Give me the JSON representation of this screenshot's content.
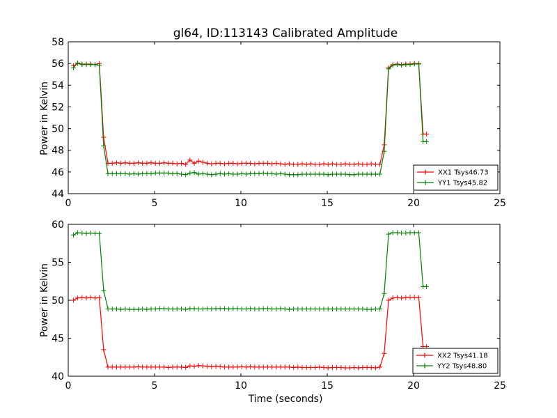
{
  "figure_title": "gl64, ID:113143 Calibrated Amplitude",
  "chart_data": [
    {
      "type": "line",
      "title": "gl64, ID:113143 Calibrated Amplitude",
      "xlabel": "",
      "ylabel": "Power in Kelvin",
      "xlim": [
        0,
        25
      ],
      "ylim": [
        44,
        58
      ],
      "xticks": [
        "0",
        "5",
        "10",
        "15",
        "20",
        "25"
      ],
      "yticks": [
        "44",
        "46",
        "48",
        "50",
        "52",
        "54",
        "56",
        "58"
      ],
      "grid": false,
      "legend_position": "lower-right",
      "series": [
        {
          "name": "XX1 Tsys46.73",
          "color": "#ff0000",
          "x": [
            0.3,
            0.55,
            0.8,
            1.05,
            1.3,
            1.55,
            1.8,
            2.05,
            2.3,
            2.55,
            2.8,
            3.05,
            3.3,
            3.55,
            3.8,
            4.05,
            4.3,
            4.55,
            4.8,
            5.05,
            5.3,
            5.55,
            5.8,
            6.05,
            6.3,
            6.55,
            6.8,
            7.05,
            7.3,
            7.55,
            7.8,
            8.05,
            8.3,
            8.55,
            8.8,
            9.05,
            9.3,
            9.55,
            9.8,
            10.05,
            10.3,
            10.55,
            10.8,
            11.05,
            11.3,
            11.55,
            11.8,
            12.05,
            12.3,
            12.55,
            12.8,
            13.05,
            13.3,
            13.55,
            13.8,
            14.05,
            14.3,
            14.55,
            14.8,
            15.05,
            15.3,
            15.55,
            15.8,
            16.05,
            16.3,
            16.55,
            16.8,
            17.05,
            17.3,
            17.55,
            17.8,
            18.05,
            18.3,
            18.55,
            18.8,
            19.05,
            19.3,
            19.55,
            19.8,
            20.05,
            20.3,
            20.55,
            20.75
          ],
          "values": [
            55.8,
            56.0,
            55.95,
            55.9,
            55.95,
            55.9,
            56.0,
            49.2,
            46.8,
            46.8,
            46.85,
            46.8,
            46.85,
            46.8,
            46.8,
            46.85,
            46.8,
            46.8,
            46.85,
            46.8,
            46.8,
            46.85,
            46.8,
            46.8,
            46.75,
            46.8,
            46.7,
            47.1,
            46.8,
            47.0,
            46.9,
            46.8,
            46.75,
            46.8,
            46.8,
            46.75,
            46.8,
            46.8,
            46.75,
            46.8,
            46.8,
            46.8,
            46.75,
            46.8,
            46.8,
            46.8,
            46.75,
            46.8,
            46.75,
            46.7,
            46.75,
            46.7,
            46.7,
            46.75,
            46.7,
            46.75,
            46.7,
            46.7,
            46.75,
            46.7,
            46.75,
            46.7,
            46.7,
            46.75,
            46.7,
            46.7,
            46.75,
            46.7,
            46.7,
            46.75,
            46.7,
            46.7,
            48.5,
            55.6,
            55.9,
            55.95,
            55.9,
            55.95,
            55.95,
            56.0,
            56.0,
            49.5,
            49.5
          ]
        },
        {
          "name": "YY1 Tsys45.82",
          "color": "#008000",
          "x": [
            0.3,
            0.55,
            0.8,
            1.05,
            1.3,
            1.55,
            1.8,
            2.05,
            2.3,
            2.55,
            2.8,
            3.05,
            3.3,
            3.55,
            3.8,
            4.05,
            4.3,
            4.55,
            4.8,
            5.05,
            5.3,
            5.55,
            5.8,
            6.05,
            6.3,
            6.55,
            6.8,
            7.05,
            7.3,
            7.55,
            7.8,
            8.05,
            8.3,
            8.55,
            8.8,
            9.05,
            9.3,
            9.55,
            9.8,
            10.05,
            10.3,
            10.55,
            10.8,
            11.05,
            11.3,
            11.55,
            11.8,
            12.05,
            12.3,
            12.55,
            12.8,
            13.05,
            13.3,
            13.55,
            13.8,
            14.05,
            14.3,
            14.55,
            14.8,
            15.05,
            15.3,
            15.55,
            15.8,
            16.05,
            16.3,
            16.55,
            16.8,
            17.05,
            17.3,
            17.55,
            17.8,
            18.05,
            18.3,
            18.55,
            18.8,
            19.05,
            19.3,
            19.55,
            19.8,
            20.05,
            20.3,
            20.55,
            20.75
          ],
          "values": [
            55.6,
            56.05,
            55.9,
            55.95,
            55.9,
            55.9,
            55.85,
            48.4,
            45.85,
            45.85,
            45.85,
            45.85,
            45.85,
            45.8,
            45.85,
            45.8,
            45.85,
            45.85,
            45.85,
            45.9,
            45.9,
            45.9,
            45.9,
            45.85,
            45.85,
            45.8,
            45.75,
            45.9,
            45.95,
            45.8,
            45.85,
            45.8,
            45.75,
            45.8,
            45.85,
            45.8,
            45.85,
            45.8,
            45.8,
            45.85,
            45.8,
            45.85,
            45.85,
            45.85,
            45.9,
            45.85,
            45.85,
            45.8,
            45.85,
            45.8,
            45.75,
            45.75,
            45.75,
            45.8,
            45.8,
            45.8,
            45.8,
            45.8,
            45.8,
            45.75,
            45.8,
            45.8,
            45.8,
            45.8,
            45.75,
            45.75,
            45.8,
            45.8,
            45.8,
            45.8,
            45.8,
            45.8,
            47.9,
            55.5,
            55.85,
            55.9,
            55.85,
            55.9,
            55.9,
            55.95,
            55.95,
            48.8,
            48.8
          ]
        }
      ]
    },
    {
      "type": "line",
      "title": "",
      "xlabel": "Time (seconds)",
      "ylabel": "Power in Kelvin",
      "xlim": [
        0,
        25
      ],
      "ylim": [
        40,
        60
      ],
      "xticks": [
        "0",
        "5",
        "10",
        "15",
        "20",
        "25"
      ],
      "yticks": [
        "40",
        "45",
        "50",
        "55",
        "60"
      ],
      "grid": false,
      "legend_position": "lower-right",
      "series": [
        {
          "name": "XX2 Tsys41.18",
          "color": "#ff0000",
          "x": [
            0.3,
            0.55,
            0.8,
            1.05,
            1.3,
            1.55,
            1.8,
            2.05,
            2.3,
            2.55,
            2.8,
            3.05,
            3.3,
            3.55,
            3.8,
            4.05,
            4.3,
            4.55,
            4.8,
            5.05,
            5.3,
            5.55,
            5.8,
            6.05,
            6.3,
            6.55,
            6.8,
            7.05,
            7.3,
            7.55,
            7.8,
            8.05,
            8.3,
            8.55,
            8.8,
            9.05,
            9.3,
            9.55,
            9.8,
            10.05,
            10.3,
            10.55,
            10.8,
            11.05,
            11.3,
            11.55,
            11.8,
            12.05,
            12.3,
            12.55,
            12.8,
            13.05,
            13.3,
            13.55,
            13.8,
            14.05,
            14.3,
            14.55,
            14.8,
            15.05,
            15.3,
            15.55,
            15.8,
            16.05,
            16.3,
            16.55,
            16.8,
            17.05,
            17.3,
            17.55,
            17.8,
            18.05,
            18.3,
            18.55,
            18.8,
            19.05,
            19.3,
            19.55,
            19.8,
            20.05,
            20.3,
            20.55,
            20.75
          ],
          "values": [
            50.0,
            50.3,
            50.35,
            50.3,
            50.35,
            50.3,
            50.35,
            43.5,
            41.2,
            41.2,
            41.2,
            41.2,
            41.2,
            41.2,
            41.2,
            41.25,
            41.2,
            41.2,
            41.2,
            41.2,
            41.2,
            41.2,
            41.15,
            41.2,
            41.2,
            41.2,
            41.15,
            41.35,
            41.3,
            41.4,
            41.35,
            41.3,
            41.25,
            41.3,
            41.25,
            41.2,
            41.2,
            41.2,
            41.2,
            41.25,
            41.2,
            41.25,
            41.2,
            41.2,
            41.2,
            41.2,
            41.2,
            41.2,
            41.2,
            41.2,
            41.2,
            41.15,
            41.2,
            41.15,
            41.15,
            41.15,
            41.15,
            41.2,
            41.15,
            41.1,
            41.15,
            41.15,
            41.15,
            41.1,
            41.1,
            41.15,
            41.1,
            41.15,
            41.15,
            41.15,
            41.1,
            41.2,
            43.0,
            50.0,
            50.3,
            50.35,
            50.3,
            50.35,
            50.4,
            50.4,
            50.35,
            43.9,
            43.9
          ]
        },
        {
          "name": "YY2 Tsys48.80",
          "color": "#008000",
          "x": [
            0.3,
            0.55,
            0.8,
            1.05,
            1.3,
            1.55,
            1.8,
            2.05,
            2.3,
            2.55,
            2.8,
            3.05,
            3.3,
            3.55,
            3.8,
            4.05,
            4.3,
            4.55,
            4.8,
            5.05,
            5.3,
            5.55,
            5.8,
            6.05,
            6.3,
            6.55,
            6.8,
            7.05,
            7.3,
            7.55,
            7.8,
            8.05,
            8.3,
            8.55,
            8.8,
            9.05,
            9.3,
            9.55,
            9.8,
            10.05,
            10.3,
            10.55,
            10.8,
            11.05,
            11.3,
            11.55,
            11.8,
            12.05,
            12.3,
            12.55,
            12.8,
            13.05,
            13.3,
            13.55,
            13.8,
            14.05,
            14.3,
            14.55,
            14.8,
            15.05,
            15.3,
            15.55,
            15.8,
            16.05,
            16.3,
            16.55,
            16.8,
            17.05,
            17.3,
            17.55,
            17.8,
            18.05,
            18.3,
            18.55,
            18.8,
            19.05,
            19.3,
            19.55,
            19.8,
            20.05,
            20.3,
            20.55,
            20.75
          ],
          "values": [
            58.6,
            58.9,
            58.85,
            58.8,
            58.85,
            58.8,
            58.8,
            51.3,
            48.85,
            48.85,
            48.85,
            48.8,
            48.85,
            48.8,
            48.8,
            48.8,
            48.85,
            48.8,
            48.85,
            48.85,
            48.9,
            48.9,
            48.85,
            48.85,
            48.85,
            48.85,
            48.8,
            48.9,
            48.9,
            48.85,
            48.85,
            48.9,
            48.85,
            48.9,
            48.9,
            48.9,
            48.85,
            48.9,
            48.9,
            48.85,
            48.85,
            48.9,
            48.85,
            48.85,
            48.9,
            48.9,
            48.85,
            48.85,
            48.9,
            48.85,
            48.8,
            48.85,
            48.85,
            48.85,
            48.85,
            48.85,
            48.85,
            48.85,
            48.85,
            48.85,
            48.85,
            48.85,
            48.85,
            48.85,
            48.85,
            48.85,
            48.85,
            48.85,
            48.8,
            48.8,
            48.85,
            48.85,
            50.9,
            58.7,
            58.9,
            58.9,
            58.85,
            58.85,
            58.9,
            58.9,
            58.9,
            51.8,
            51.8
          ]
        }
      ]
    }
  ]
}
